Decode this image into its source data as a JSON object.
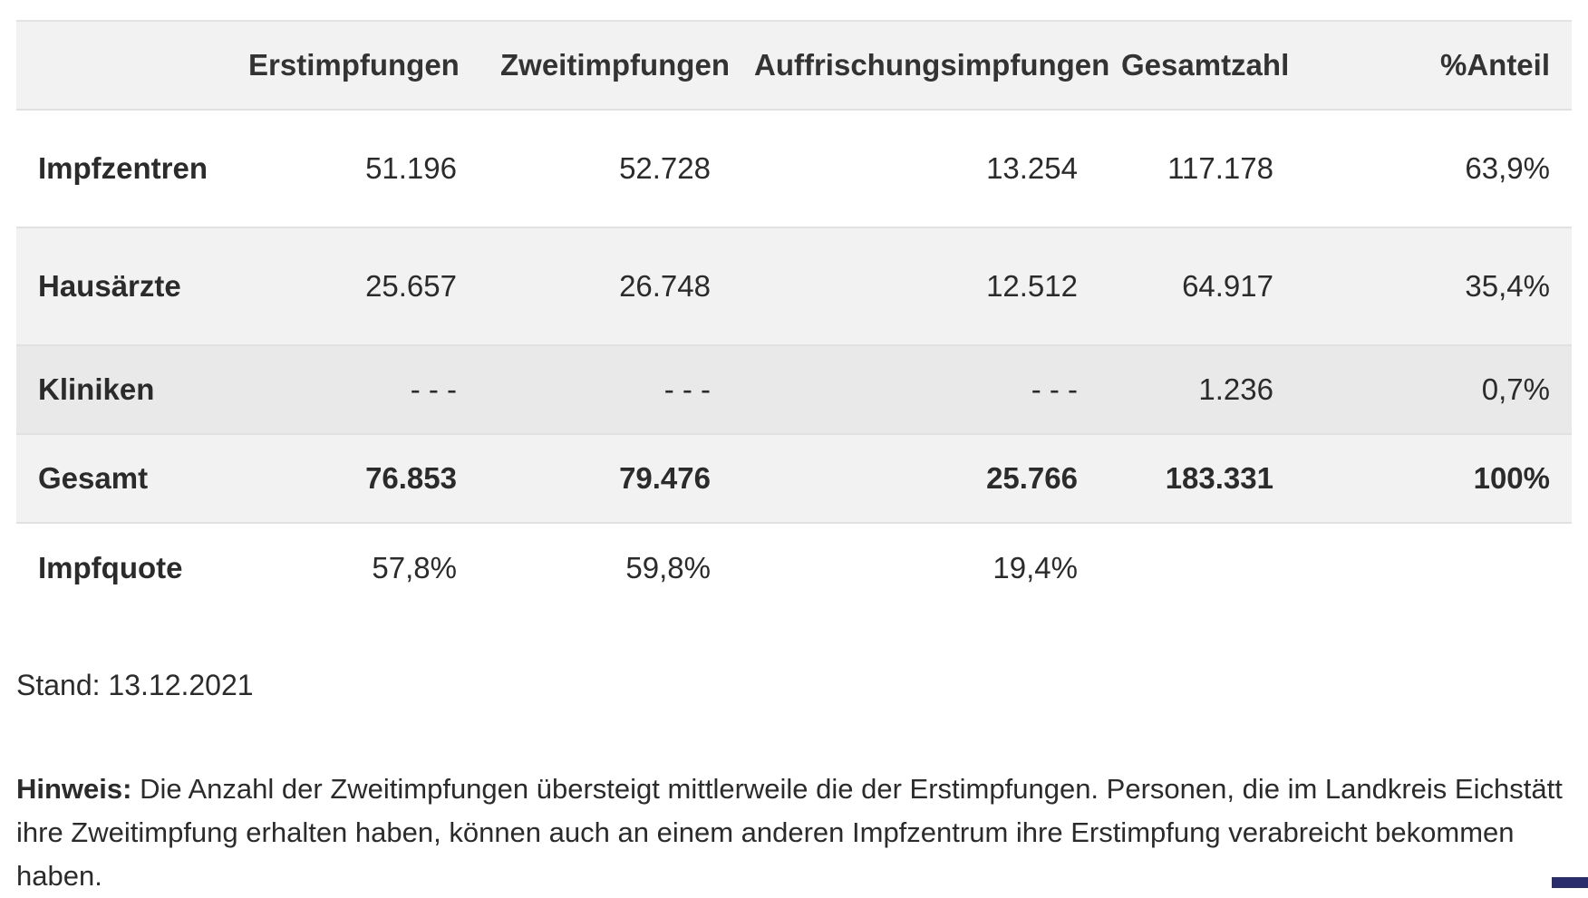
{
  "table": {
    "headers": [
      "",
      "Erstimpfungen",
      "Zweitimpfungen",
      "Auffrischungsimpfungen",
      "Gesamtzahl",
      "%Anteil"
    ],
    "rows": [
      {
        "label": "Impfzentren",
        "cells": [
          "51.196",
          "52.728",
          "13.254",
          "117.178",
          "63,9%"
        ]
      },
      {
        "label": "Hausärzte",
        "cells": [
          "25.657",
          "26.748",
          "12.512",
          "64.917",
          "35,4%"
        ]
      },
      {
        "label": "Kliniken",
        "cells": [
          "- - -",
          "- - -",
          "- - -",
          "1.236",
          "0,7%"
        ]
      },
      {
        "label": "Gesamt",
        "cells": [
          "76.853",
          "79.476",
          "25.766",
          "183.331",
          "100%"
        ]
      },
      {
        "label": "Impfquote",
        "cells": [
          "57,8%",
          "59,8%",
          "19,4%",
          "",
          ""
        ]
      }
    ]
  },
  "stand": "Stand: 13.12.2021",
  "hinweis": {
    "label": "Hinweis:",
    "text": " Die Anzahl der Zweitimpfungen übersteigt mittlerweile die der Erstimpfungen. Personen, die im Landkreis Eichstätt ihre Zweitimpfung erhalten haben, können auch an einem anderen Impfzentrum ihre Erstimpfung verabreicht bekommen haben."
  },
  "colors": {
    "header_bg": "#f2f2f2",
    "row_alt_bg": "#f2f2f2",
    "row_kliniken_bg": "#e9e9e9",
    "text": "#2b2b2b",
    "corner_accent": "#2a2d6b"
  }
}
